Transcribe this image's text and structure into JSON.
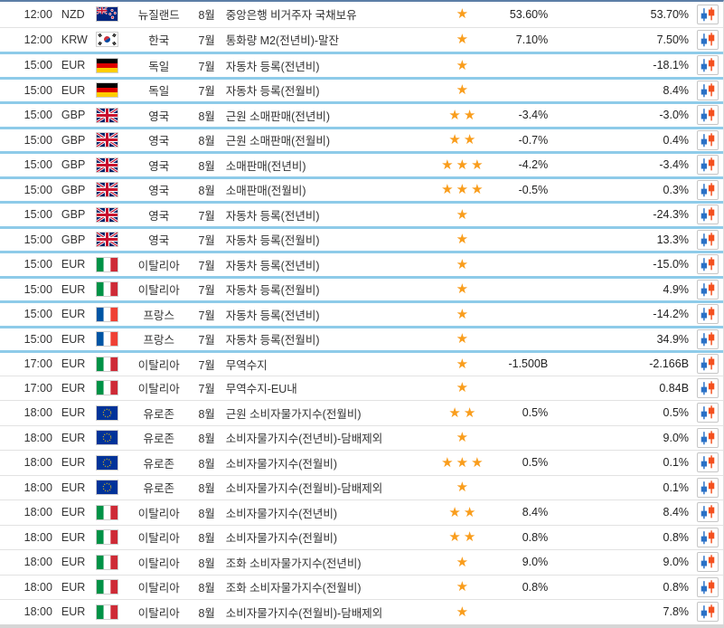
{
  "colors": {
    "top_border": "#5C7EA6",
    "separator_blue": "#8ECBE9",
    "separator_gray": "#E2E2E2",
    "star_orange": "#F99D1C",
    "candle_blue": "#2A71C6",
    "candle_red": "#F4501E",
    "text": "#333333"
  },
  "icons": {
    "star_glyph": "★",
    "chart_icon_name": "candlestick-chart-icon"
  },
  "table": {
    "rows": [
      {
        "time": "12:00",
        "currency": "NZD",
        "country_code": "nz",
        "country": "뉴질랜드",
        "month": "8월",
        "event": "중앙은행 비거주자 국채보유",
        "importance": 1,
        "forecast": "53.60%",
        "previous": "53.70%",
        "separator_above": "none"
      },
      {
        "time": "12:00",
        "currency": "KRW",
        "country_code": "kr",
        "country": "한국",
        "month": "7월",
        "event": "통화량 M2(전년비)-말잔",
        "importance": 1,
        "forecast": "7.10%",
        "previous": "7.50%",
        "separator_above": "gray"
      },
      {
        "time": "15:00",
        "currency": "EUR",
        "country_code": "de",
        "country": "독일",
        "month": "7월",
        "event": "자동차 등록(전년비)",
        "importance": 1,
        "forecast": "",
        "previous": "-18.1%",
        "separator_above": "blue"
      },
      {
        "time": "15:00",
        "currency": "EUR",
        "country_code": "de",
        "country": "독일",
        "month": "7월",
        "event": "자동차 등록(전월비)",
        "importance": 1,
        "forecast": "",
        "previous": "8.4%",
        "separator_above": "blue"
      },
      {
        "time": "15:00",
        "currency": "GBP",
        "country_code": "gb",
        "country": "영국",
        "month": "8월",
        "event": "근원 소매판매(전년비)",
        "importance": 2,
        "forecast": "-3.4%",
        "previous": "-3.0%",
        "separator_above": "blue"
      },
      {
        "time": "15:00",
        "currency": "GBP",
        "country_code": "gb",
        "country": "영국",
        "month": "8월",
        "event": "근원 소매판매(전월비)",
        "importance": 2,
        "forecast": "-0.7%",
        "previous": "0.4%",
        "separator_above": "blue"
      },
      {
        "time": "15:00",
        "currency": "GBP",
        "country_code": "gb",
        "country": "영국",
        "month": "8월",
        "event": "소매판매(전년비)",
        "importance": 3,
        "forecast": "-4.2%",
        "previous": "-3.4%",
        "separator_above": "blue"
      },
      {
        "time": "15:00",
        "currency": "GBP",
        "country_code": "gb",
        "country": "영국",
        "month": "8월",
        "event": "소매판매(전월비)",
        "importance": 3,
        "forecast": "-0.5%",
        "previous": "0.3%",
        "separator_above": "blue"
      },
      {
        "time": "15:00",
        "currency": "GBP",
        "country_code": "gb",
        "country": "영국",
        "month": "7월",
        "event": "자동차 등록(전년비)",
        "importance": 1,
        "forecast": "",
        "previous": "-24.3%",
        "separator_above": "blue"
      },
      {
        "time": "15:00",
        "currency": "GBP",
        "country_code": "gb",
        "country": "영국",
        "month": "7월",
        "event": "자동차 등록(전월비)",
        "importance": 1,
        "forecast": "",
        "previous": "13.3%",
        "separator_above": "blue"
      },
      {
        "time": "15:00",
        "currency": "EUR",
        "country_code": "it",
        "country": "이탈리아",
        "month": "7월",
        "event": "자동차 등록(전년비)",
        "importance": 1,
        "forecast": "",
        "previous": "-15.0%",
        "separator_above": "blue"
      },
      {
        "time": "15:00",
        "currency": "EUR",
        "country_code": "it",
        "country": "이탈리아",
        "month": "7월",
        "event": "자동차 등록(전월비)",
        "importance": 1,
        "forecast": "",
        "previous": "4.9%",
        "separator_above": "blue"
      },
      {
        "time": "15:00",
        "currency": "EUR",
        "country_code": "fr",
        "country": "프랑스",
        "month": "7월",
        "event": "자동차 등록(전년비)",
        "importance": 1,
        "forecast": "",
        "previous": "-14.2%",
        "separator_above": "blue"
      },
      {
        "time": "15:00",
        "currency": "EUR",
        "country_code": "fr",
        "country": "프랑스",
        "month": "7월",
        "event": "자동차 등록(전월비)",
        "importance": 1,
        "forecast": "",
        "previous": "34.9%",
        "separator_above": "blue"
      },
      {
        "time": "17:00",
        "currency": "EUR",
        "country_code": "it",
        "country": "이탈리아",
        "month": "7월",
        "event": "무역수지",
        "importance": 1,
        "forecast": "-1.500B",
        "previous": "-2.166B",
        "separator_above": "blue"
      },
      {
        "time": "17:00",
        "currency": "EUR",
        "country_code": "it",
        "country": "이탈리아",
        "month": "7월",
        "event": "무역수지-EU내",
        "importance": 1,
        "forecast": "",
        "previous": "0.84B",
        "separator_above": "gray"
      },
      {
        "time": "18:00",
        "currency": "EUR",
        "country_code": "eu",
        "country": "유로존",
        "month": "8월",
        "event": "근원 소비자물가지수(전월비)",
        "importance": 2,
        "forecast": "0.5%",
        "previous": "0.5%",
        "separator_above": "gray"
      },
      {
        "time": "18:00",
        "currency": "EUR",
        "country_code": "eu",
        "country": "유로존",
        "month": "8월",
        "event": "소비자물가지수(전년비)-담배제외",
        "importance": 1,
        "forecast": "",
        "previous": "9.0%",
        "separator_above": "gray"
      },
      {
        "time": "18:00",
        "currency": "EUR",
        "country_code": "eu",
        "country": "유로존",
        "month": "8월",
        "event": "소비자물가지수(전월비)",
        "importance": 3,
        "forecast": "0.5%",
        "previous": "0.1%",
        "separator_above": "gray"
      },
      {
        "time": "18:00",
        "currency": "EUR",
        "country_code": "eu",
        "country": "유로존",
        "month": "8월",
        "event": "소비자물가지수(전월비)-담배제외",
        "importance": 1,
        "forecast": "",
        "previous": "0.1%",
        "separator_above": "gray"
      },
      {
        "time": "18:00",
        "currency": "EUR",
        "country_code": "it",
        "country": "이탈리아",
        "month": "8월",
        "event": "소비자물가지수(전년비)",
        "importance": 2,
        "forecast": "8.4%",
        "previous": "8.4%",
        "separator_above": "gray"
      },
      {
        "time": "18:00",
        "currency": "EUR",
        "country_code": "it",
        "country": "이탈리아",
        "month": "8월",
        "event": "소비자물가지수(전월비)",
        "importance": 2,
        "forecast": "0.8%",
        "previous": "0.8%",
        "separator_above": "gray"
      },
      {
        "time": "18:00",
        "currency": "EUR",
        "country_code": "it",
        "country": "이탈리아",
        "month": "8월",
        "event": "조화 소비자물가지수(전년비)",
        "importance": 1,
        "forecast": "9.0%",
        "previous": "9.0%",
        "separator_above": "gray"
      },
      {
        "time": "18:00",
        "currency": "EUR",
        "country_code": "it",
        "country": "이탈리아",
        "month": "8월",
        "event": "조화 소비자물가지수(전월비)",
        "importance": 1,
        "forecast": "0.8%",
        "previous": "0.8%",
        "separator_above": "gray"
      },
      {
        "time": "18:00",
        "currency": "EUR",
        "country_code": "it",
        "country": "이탈리아",
        "month": "8월",
        "event": "소비자물가지수(전월비)-담배제외",
        "importance": 1,
        "forecast": "",
        "previous": "7.8%",
        "separator_above": "gray"
      }
    ]
  }
}
